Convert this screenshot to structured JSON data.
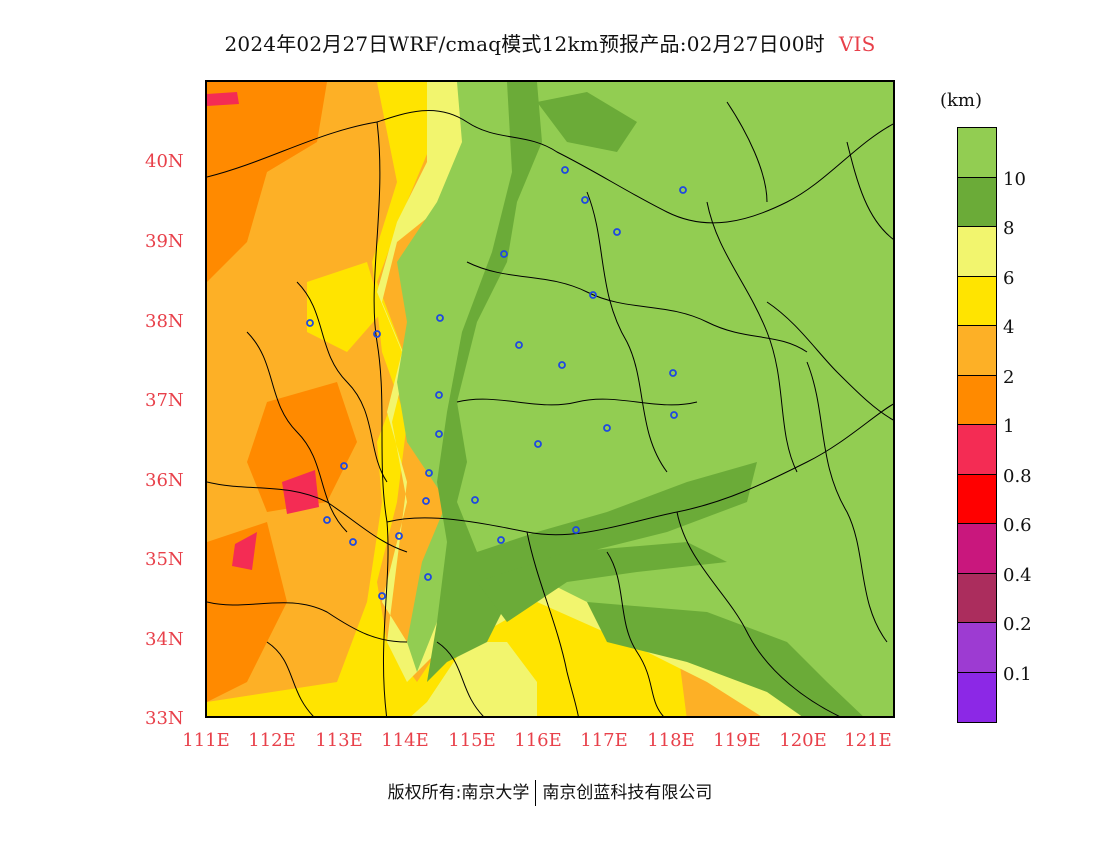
{
  "title": {
    "main": "2024年02月27日WRF/cmaq模式12km预报产品:02月27日00时",
    "variable": "VIS"
  },
  "axes": {
    "lat_labels": [
      "40N",
      "39N",
      "38N",
      "37N",
      "36N",
      "35N",
      "34N",
      "33N"
    ],
    "lon_labels": [
      "111E",
      "112E",
      "113E",
      "114E",
      "115E",
      "116E",
      "117E",
      "118E",
      "119E",
      "120E",
      "121E"
    ]
  },
  "colorbar": {
    "unit": "(km)",
    "labels": [
      "10",
      "8",
      "6",
      "4",
      "2",
      "1",
      "0.8",
      "0.6",
      "0.4",
      "0.2",
      "0.1"
    ],
    "colors": [
      "#92cd52",
      "#6bab38",
      "#f2f56e",
      "#ffe400",
      "#fdb026",
      "#ff8a00",
      "#f42c54",
      "#ff0000",
      "#c9177d",
      "#ab2d5d",
      "#9d3bd2",
      "#8c28e6"
    ]
  },
  "footer": {
    "copyright": "版权所有:南京大学",
    "company": "南京创蓝科技有限公司"
  },
  "chart_data": {
    "type": "heatmap",
    "title": "2024年02月27日WRF/cmaq模式12km预报产品:02月27日00时",
    "variable": "VIS",
    "unit": "km",
    "xlim": [
      111,
      121.4
    ],
    "ylim": [
      33,
      41
    ],
    "x_ticks": [
      111,
      112,
      113,
      114,
      115,
      116,
      117,
      118,
      119,
      120,
      121
    ],
    "y_ticks": [
      33,
      34,
      35,
      36,
      37,
      38,
      39,
      40
    ],
    "levels": [
      0.1,
      0.2,
      0.4,
      0.6,
      0.8,
      1,
      2,
      4,
      6,
      8,
      10
    ]
  }
}
